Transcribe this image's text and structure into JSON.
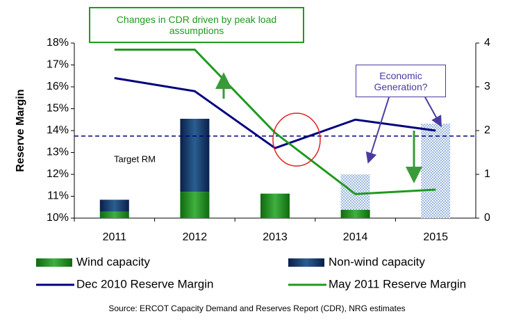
{
  "chart_data": {
    "type": "bar",
    "y_label": "Reserve Margin",
    "categories": [
      "2011",
      "2012",
      "2013",
      "2014",
      "2015"
    ],
    "ylim": [
      10,
      18
    ],
    "yticks": [
      {
        "value": 10,
        "label": "10%"
      },
      {
        "value": 11,
        "label": "11%"
      },
      {
        "value": 12,
        "label": "12%"
      },
      {
        "value": 13,
        "label": "13%"
      },
      {
        "value": 14,
        "label": "14%"
      },
      {
        "value": 15,
        "label": "15%"
      },
      {
        "value": 16,
        "label": "16%"
      },
      {
        "value": 17,
        "label": "17%"
      },
      {
        "value": 18,
        "label": "18%"
      }
    ],
    "y2lim": [
      0,
      4
    ],
    "y2ticks": [
      0,
      1,
      2,
      3,
      4
    ],
    "target": {
      "value": 13.75,
      "label": "Target RM"
    },
    "series": [
      {
        "name": "Wind capacity",
        "type": "bar",
        "axis": "y2",
        "fill": "url(#gWind)",
        "values": [
          0.15,
          0.6,
          0.56,
          0.19,
          null
        ]
      },
      {
        "name": "Non-wind capacity",
        "type": "bar",
        "axis": "y2",
        "fill": "url(#gNon)",
        "values": [
          0.27,
          1.67,
          null,
          null,
          null
        ]
      },
      {
        "name": "Economic Generation?",
        "type": "bar",
        "axis": "y2",
        "fill": "url(#pDots)",
        "legend": false,
        "values": [
          null,
          null,
          null,
          0.81,
          2.16
        ]
      },
      {
        "name": "Dec 2010 Reserve Margin",
        "type": "line",
        "color": "#00007f",
        "values": [
          16.4,
          15.8,
          13.2,
          14.5,
          14.0
        ]
      },
      {
        "name": "May 2011 Reserve Margin",
        "type": "line",
        "color": "#1e9a1e",
        "values": [
          17.7,
          17.7,
          13.9,
          11.1,
          11.3
        ]
      }
    ],
    "annotation": "Changes in CDR driven by peak load assumptions",
    "source": "Source:  ERCOT Capacity Demand and Reserves Report (CDR), NRG estimates"
  }
}
